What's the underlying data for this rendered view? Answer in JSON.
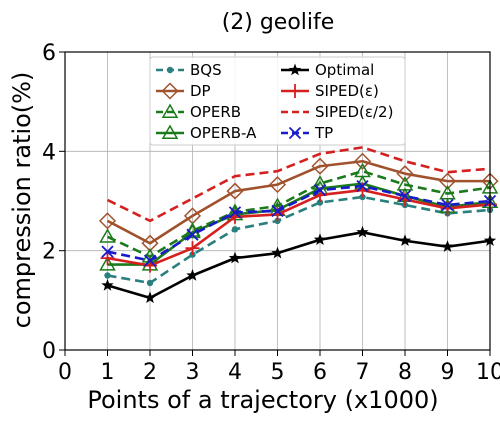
{
  "chart_data": {
    "type": "line",
    "title": "(2) geolife",
    "xlabel": "Points of a trajectory (x1000)",
    "ylabel": "compression ratio(%)",
    "xlim": [
      0,
      10
    ],
    "ylim": [
      0,
      6
    ],
    "xticks": [
      "0",
      "1",
      "2",
      "3",
      "4",
      "5",
      "6",
      "7",
      "8",
      "9",
      "10"
    ],
    "yticks": [
      "0",
      "2",
      "4",
      "6"
    ],
    "grid": true,
    "legend_position": "top-center",
    "x": [
      1,
      2,
      3,
      4,
      5,
      6,
      7,
      8,
      9,
      10
    ],
    "series": [
      {
        "name": "BQS",
        "color": "#2a7f7f",
        "dash": "dashed",
        "marker": "dot",
        "values": [
          1.5,
          1.35,
          1.92,
          2.43,
          2.6,
          2.97,
          3.08,
          2.92,
          2.75,
          2.82
        ]
      },
      {
        "name": "DP",
        "color": "#a0522d",
        "dash": "solid",
        "marker": "diamond",
        "values": [
          2.6,
          2.15,
          2.7,
          3.2,
          3.33,
          3.7,
          3.8,
          3.55,
          3.4,
          3.4
        ]
      },
      {
        "name": "OPERB",
        "color": "#1b7a1b",
        "dash": "dashed",
        "marker": "triangle",
        "values": [
          2.28,
          1.88,
          2.4,
          2.78,
          2.9,
          3.35,
          3.6,
          3.33,
          3.15,
          3.27
        ]
      },
      {
        "name": "OPERB-A",
        "color": "#1b7a1b",
        "dash": "solid",
        "marker": "triangle",
        "values": [
          1.72,
          1.72,
          2.37,
          2.73,
          2.82,
          3.25,
          3.35,
          3.1,
          2.88,
          2.98
        ]
      },
      {
        "name": "Optimal",
        "color": "#000000",
        "dash": "solid",
        "marker": "star",
        "values": [
          1.3,
          1.05,
          1.5,
          1.85,
          1.95,
          2.22,
          2.37,
          2.2,
          2.08,
          2.2
        ]
      },
      {
        "name": "SIPED(ε)",
        "color": "#d62020",
        "dash": "solid",
        "marker": "plus",
        "values": [
          1.85,
          1.7,
          2.05,
          2.68,
          2.73,
          3.12,
          3.22,
          3.03,
          2.85,
          2.93
        ]
      },
      {
        "name": "SIPED(ε/2)",
        "color": "#d62020",
        "dash": "dashed",
        "marker": "none",
        "values": [
          3.02,
          2.6,
          3.05,
          3.5,
          3.6,
          3.95,
          4.08,
          3.8,
          3.58,
          3.65
        ]
      },
      {
        "name": "TP",
        "color": "#1a1acc",
        "dash": "dashed",
        "marker": "x",
        "values": [
          1.98,
          1.8,
          2.32,
          2.77,
          2.8,
          3.22,
          3.3,
          3.1,
          2.92,
          3.0
        ]
      }
    ]
  }
}
